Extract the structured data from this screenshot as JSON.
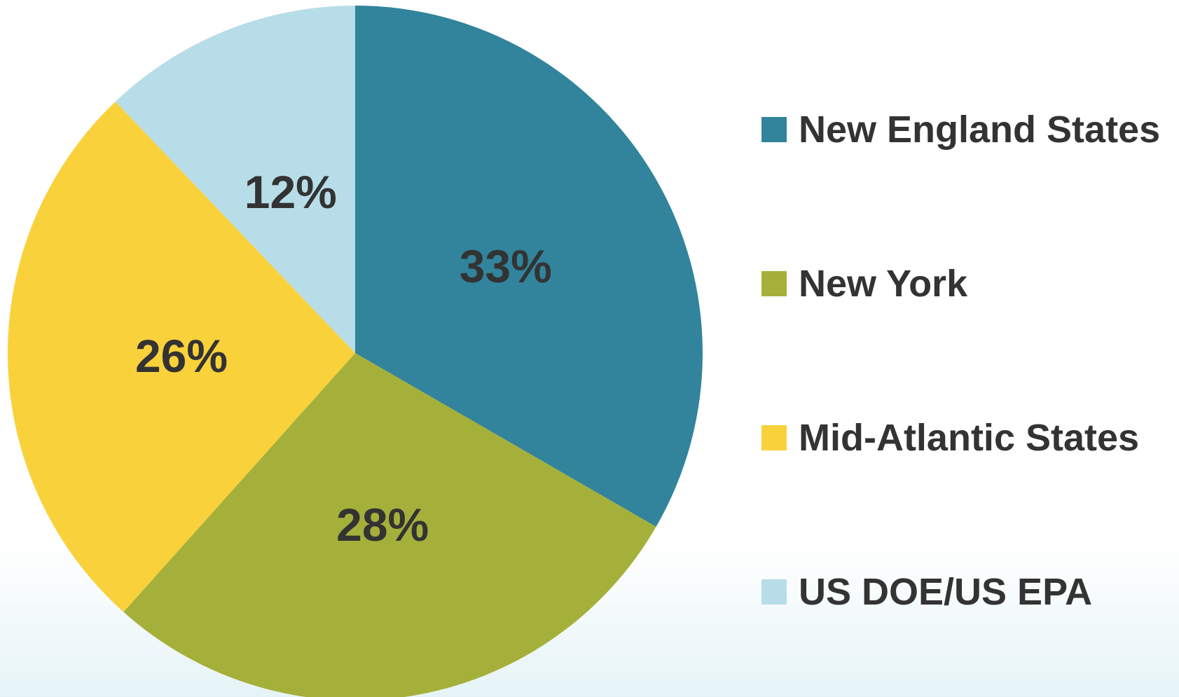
{
  "chart_data": {
    "type": "pie",
    "categories": [
      "New England States",
      "New York",
      "Mid-Atlantic States",
      "US DOE/US EPA"
    ],
    "values": [
      33,
      28,
      26,
      12
    ],
    "value_labels": [
      "33%",
      "28%",
      "26%",
      "12%"
    ],
    "colors": [
      "#31849b",
      "#a5b03a",
      "#f9d13b",
      "#b7dde8"
    ],
    "legend": "right"
  }
}
